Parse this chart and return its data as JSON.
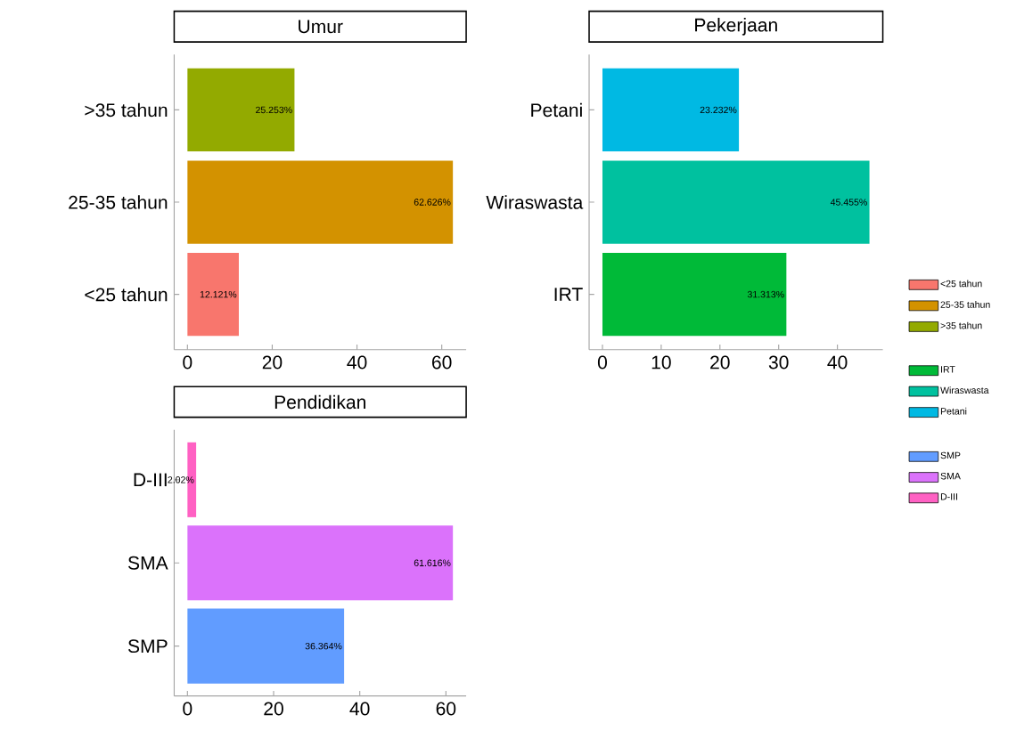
{
  "chart_data": [
    {
      "type": "bar",
      "orientation": "horizontal",
      "stacked": true,
      "title": "Umur",
      "categories": [
        ">35 tahun",
        "25-35 tahun",
        "<25 tahun"
      ],
      "xlim": [
        -3.13,
        65.76
      ],
      "xticks": [
        0,
        20,
        40,
        60
      ],
      "legend": "right",
      "series": [
        {
          "name": "<25 tahun",
          "color": "#f8766d",
          "values": [
            null,
            null,
            12.121
          ],
          "value_labels": [
            null,
            null,
            "12.121%"
          ]
        },
        {
          "name": "25-35 tahun",
          "color": "#d39200",
          "values": [
            null,
            62.626,
            null
          ],
          "value_labels": [
            null,
            "62.626%",
            null
          ]
        },
        {
          "name": ">35 tahun",
          "color": "#93aa00",
          "values": [
            25.253,
            null,
            null
          ],
          "value_labels": [
            "25.253%",
            null,
            null
          ]
        }
      ]
    },
    {
      "type": "bar",
      "orientation": "horizontal",
      "stacked": true,
      "title": "Pekerjaan",
      "categories": [
        "Petani",
        "Wiraswasta",
        "IRT"
      ],
      "xlim": [
        -2.27,
        47.73
      ],
      "xticks": [
        0,
        10,
        20,
        30,
        40
      ],
      "legend": "right",
      "series": [
        {
          "name": "IRT",
          "color": "#00ba38",
          "values": [
            null,
            null,
            31.313
          ],
          "value_labels": [
            null,
            null,
            "31.313%"
          ]
        },
        {
          "name": "Wiraswasta",
          "color": "#00c19f",
          "values": [
            null,
            45.455,
            null
          ],
          "value_labels": [
            null,
            "45.455%",
            null
          ]
        },
        {
          "name": "Petani",
          "color": "#00b9e3",
          "values": [
            23.232,
            null,
            null
          ],
          "value_labels": [
            "23.232%",
            null,
            null
          ]
        }
      ]
    },
    {
      "type": "bar",
      "orientation": "horizontal",
      "stacked": true,
      "title": "Pendidikan",
      "categories": [
        "D-III",
        "SMA",
        "SMP"
      ],
      "xlim": [
        -3.08,
        64.7
      ],
      "xticks": [
        0,
        20,
        40,
        60
      ],
      "legend": "right",
      "series": [
        {
          "name": "SMP",
          "color": "#619cff",
          "values": [
            null,
            null,
            36.364
          ],
          "value_labels": [
            null,
            null,
            "36.364%"
          ]
        },
        {
          "name": "SMA",
          "color": "#db72fb",
          "values": [
            null,
            61.616,
            null
          ],
          "value_labels": [
            null,
            "61.616%",
            null
          ]
        },
        {
          "name": "D-III",
          "color": "#ff61c3",
          "values": [
            2.02,
            null,
            null
          ],
          "value_labels": [
            "2.02%",
            null,
            null
          ]
        }
      ]
    }
  ]
}
